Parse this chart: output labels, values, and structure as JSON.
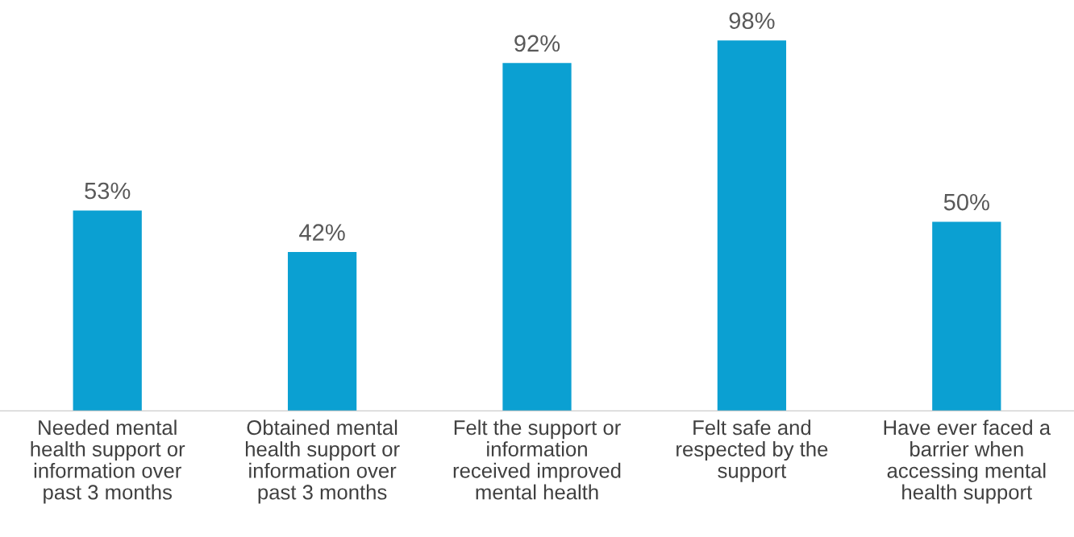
{
  "chart_data": {
    "type": "bar",
    "categories": [
      "Needed mental\nhealth support or\ninformation over\npast 3 months",
      "Obtained mental\nhealth support or\ninformation over\npast 3 months",
      "Felt the support or\ninformation\nreceived improved\nmental health",
      "Felt safe and\nrespected by the\nsupport",
      "Have ever faced a\nbarrier when\naccessing mental\nhealth support"
    ],
    "values": [
      53,
      42,
      92,
      98,
      50
    ],
    "value_labels": [
      "53%",
      "42%",
      "92%",
      "98%",
      "50%"
    ],
    "color": "#0ba0d2"
  }
}
